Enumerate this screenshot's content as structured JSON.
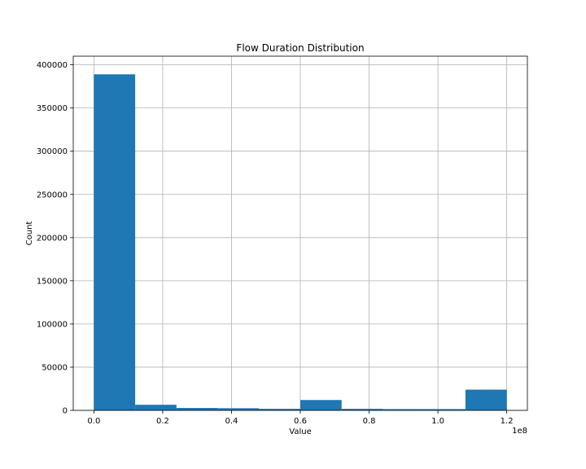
{
  "chart_data": {
    "type": "bar",
    "title": "Flow Duration Distribution",
    "xlabel": "Value",
    "ylabel": "Count",
    "x_offset_text": "1e8",
    "bin_edges": [
      0,
      0.12,
      0.24,
      0.36,
      0.48,
      0.6,
      0.72,
      0.84,
      0.96,
      1.08,
      1.2
    ],
    "values": [
      389000,
      6500,
      2800,
      2500,
      1800,
      12000,
      1800,
      1500,
      1500,
      24000
    ],
    "xlim": [
      -0.06,
      1.26
    ],
    "ylim": [
      0,
      410000
    ],
    "xticks": [
      {
        "value": 0.0,
        "label": "0.0"
      },
      {
        "value": 0.2,
        "label": "0.2"
      },
      {
        "value": 0.4,
        "label": "0.4"
      },
      {
        "value": 0.6,
        "label": "0.6"
      },
      {
        "value": 0.8,
        "label": "0.8"
      },
      {
        "value": 1.0,
        "label": "1.0"
      },
      {
        "value": 1.2,
        "label": "1.2"
      }
    ],
    "yticks": [
      {
        "value": 0,
        "label": "0"
      },
      {
        "value": 50000,
        "label": "50000"
      },
      {
        "value": 100000,
        "label": "100000"
      },
      {
        "value": 150000,
        "label": "150000"
      },
      {
        "value": 200000,
        "label": "200000"
      },
      {
        "value": 250000,
        "label": "250000"
      },
      {
        "value": 300000,
        "label": "300000"
      },
      {
        "value": 350000,
        "label": "350000"
      },
      {
        "value": 400000,
        "label": "400000"
      }
    ],
    "grid": true,
    "bar_color": "#1f77b4",
    "grid_color": "#b0b0b0"
  }
}
